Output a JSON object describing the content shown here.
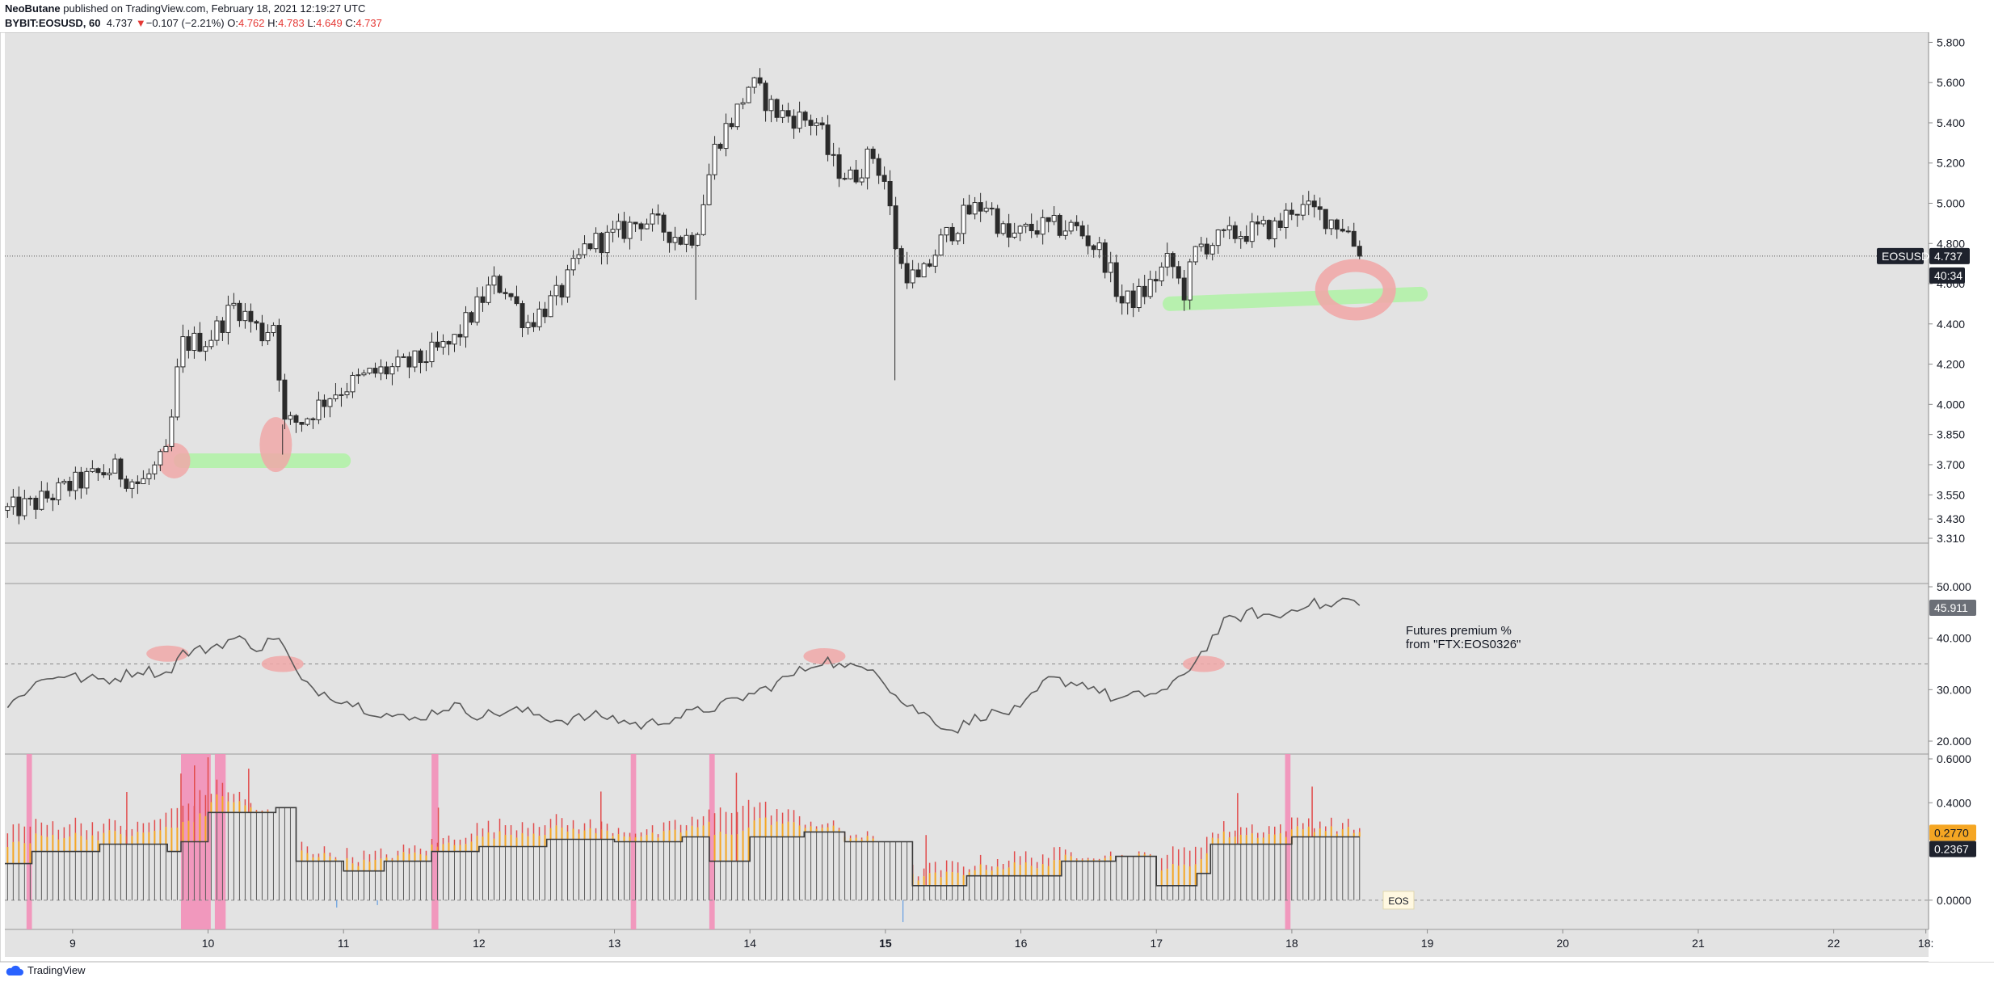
{
  "header": {
    "author": "NeoButane",
    "published": "published on TradingView.com, February 18, 2021 12:19:27 UTC",
    "symbol": "BYBIT:EOSUSD, 60",
    "last": "4.737",
    "change_arrow": "▼",
    "change": "−0.107 (−2.21%)",
    "o_label": "O:",
    "o": "4.762",
    "h_label": "H:",
    "h": "4.783",
    "l_label": "L:",
    "l": "4.649",
    "c_label": "C:",
    "c": "4.737"
  },
  "footer": {
    "brand": "TradingView",
    "icon": "cloud-icon"
  },
  "colors": {
    "background": "#e3e3e3",
    "candle": "#2b2b2b",
    "green_marker": "#b3f2a9",
    "red_marker": "#f0a8a8",
    "pink_band": "#f28fb8",
    "premium_line": "#5a5a5a",
    "hist_red": "#e24c4c",
    "hist_orange": "#f5a623"
  },
  "chart_data": [
    {
      "type": "candlestick",
      "name": "EOSUSD",
      "price_label": "EOSUSD",
      "last": 4.737,
      "countdown": "40:34",
      "ylim": [
        3.31,
        5.85
      ],
      "yticks": [
        "5.800",
        "5.600",
        "5.400",
        "5.200",
        "5.000",
        "4.800",
        "4.600",
        "4.400",
        "4.200",
        "4.000",
        "3.850",
        "3.700",
        "3.550",
        "3.430",
        "3.310"
      ],
      "ytick_values": [
        5.8,
        5.6,
        5.4,
        5.2,
        5.0,
        4.8,
        4.6,
        4.4,
        4.2,
        4.0,
        3.85,
        3.7,
        3.55,
        3.43,
        3.31
      ],
      "xticks": [
        "9",
        "10",
        "11",
        "12",
        "13",
        "14",
        "15",
        "16",
        "17",
        "18",
        "19",
        "20",
        "21",
        "22",
        "18:"
      ],
      "xtick_positions": [
        9,
        10,
        11,
        12,
        13,
        14,
        15,
        16,
        17,
        18,
        19,
        20,
        21,
        22,
        22.68
      ],
      "xlim": [
        8.5,
        22.7
      ],
      "path_anchors": [
        [
          8.5,
          3.47
        ],
        [
          8.7,
          3.5
        ],
        [
          9.0,
          3.6
        ],
        [
          9.3,
          3.68
        ],
        [
          9.5,
          3.6
        ],
        [
          9.7,
          3.75
        ],
        [
          9.8,
          4.3
        ],
        [
          10.0,
          4.32
        ],
        [
          10.2,
          4.5
        ],
        [
          10.4,
          4.35
        ],
        [
          10.5,
          4.42
        ],
        [
          10.55,
          3.9
        ],
        [
          10.7,
          3.92
        ],
        [
          10.9,
          4.05
        ],
        [
          11.2,
          4.15
        ],
        [
          11.5,
          4.2
        ],
        [
          11.8,
          4.3
        ],
        [
          12.0,
          4.5
        ],
        [
          12.1,
          4.6
        ],
        [
          12.2,
          4.58
        ],
        [
          12.35,
          4.4
        ],
        [
          12.6,
          4.55
        ],
        [
          12.8,
          4.8
        ],
        [
          12.95,
          4.82
        ],
        [
          13.2,
          4.92
        ],
        [
          13.4,
          4.86
        ],
        [
          13.5,
          4.82
        ],
        [
          13.6,
          4.85
        ],
        [
          13.75,
          5.3
        ],
        [
          13.9,
          5.45
        ],
        [
          14.0,
          5.6
        ],
        [
          14.2,
          5.45
        ],
        [
          14.5,
          5.4
        ],
        [
          14.6,
          5.2
        ],
        [
          14.75,
          5.12
        ],
        [
          14.9,
          5.25
        ],
        [
          15.0,
          5.1
        ],
        [
          15.1,
          4.7
        ],
        [
          15.25,
          4.6
        ],
        [
          15.4,
          4.8
        ],
        [
          15.6,
          4.95
        ],
        [
          15.75,
          5.0
        ],
        [
          15.9,
          4.82
        ],
        [
          16.1,
          4.88
        ],
        [
          16.4,
          4.88
        ],
        [
          16.6,
          4.75
        ],
        [
          16.75,
          4.5
        ],
        [
          16.9,
          4.55
        ],
        [
          17.1,
          4.72
        ],
        [
          17.2,
          4.55
        ],
        [
          17.3,
          4.78
        ],
        [
          17.6,
          4.85
        ],
        [
          17.9,
          4.88
        ],
        [
          18.0,
          4.98
        ],
        [
          18.2,
          4.95
        ],
        [
          18.4,
          4.88
        ],
        [
          18.5,
          4.74
        ]
      ],
      "annotations": {
        "green_zones": [
          {
            "x": [
              9.8,
              11.0
            ],
            "y": 3.72
          },
          {
            "x": [
              17.1,
              18.95
            ],
            "y": 4.5
          }
        ],
        "red_marks": [
          {
            "x": 9.75,
            "y": 3.72
          },
          {
            "x": 10.5,
            "y": 3.8
          },
          {
            "x": 18.47,
            "y": 4.57
          }
        ]
      }
    },
    {
      "type": "line",
      "name": "Futures premium %",
      "label_line1": "Futures premium %",
      "label_line2": "from \"FTX:EOS0326\"",
      "last": "45.911",
      "ylim": [
        20,
        50
      ],
      "yticks": [
        "50.000",
        "40.000",
        "30.000",
        "20.000"
      ],
      "ytick_values": [
        50,
        40,
        30,
        20
      ],
      "reference_level": 35,
      "anchors": [
        [
          8.5,
          26
        ],
        [
          8.7,
          31
        ],
        [
          8.9,
          33
        ],
        [
          9.1,
          32
        ],
        [
          9.3,
          32
        ],
        [
          9.5,
          34
        ],
        [
          9.7,
          33
        ],
        [
          9.8,
          37
        ],
        [
          10.0,
          38
        ],
        [
          10.2,
          40
        ],
        [
          10.4,
          38
        ],
        [
          10.5,
          41
        ],
        [
          10.6,
          36
        ],
        [
          10.7,
          31
        ],
        [
          10.9,
          29
        ],
        [
          11.2,
          26
        ],
        [
          11.5,
          24
        ],
        [
          11.8,
          27
        ],
        [
          12.0,
          25
        ],
        [
          12.3,
          26
        ],
        [
          12.6,
          24
        ],
        [
          12.9,
          25
        ],
        [
          13.2,
          23
        ],
        [
          13.5,
          25
        ],
        [
          13.8,
          27
        ],
        [
          14.1,
          30
        ],
        [
          14.4,
          34
        ],
        [
          14.55,
          36
        ],
        [
          14.7,
          34
        ],
        [
          14.9,
          35
        ],
        [
          15.1,
          28
        ],
        [
          15.3,
          25
        ],
        [
          15.5,
          22
        ],
        [
          15.7,
          25
        ],
        [
          16.0,
          26
        ],
        [
          16.2,
          32
        ],
        [
          16.5,
          31
        ],
        [
          16.7,
          28
        ],
        [
          16.9,
          29
        ],
        [
          17.1,
          30
        ],
        [
          17.3,
          36
        ],
        [
          17.5,
          43
        ],
        [
          17.7,
          45
        ],
        [
          17.9,
          44
        ],
        [
          18.1,
          47
        ],
        [
          18.3,
          46
        ],
        [
          18.4,
          48
        ],
        [
          18.5,
          46
        ]
      ],
      "markers": [
        {
          "x": 9.7,
          "y": 37
        },
        {
          "x": 10.55,
          "y": 35
        },
        {
          "x": 14.55,
          "y": 36.5
        },
        {
          "x": 17.35,
          "y": 35
        }
      ]
    },
    {
      "type": "bar",
      "name": "EOS",
      "label": "EOS",
      "ylim": [
        -0.12,
        0.6
      ],
      "yticks": [
        "0.6000",
        "0.4000",
        "0.2770",
        "0.2367",
        "0.0000"
      ],
      "ytick_values": [
        0.6,
        0.4,
        0.277,
        0.2367,
        0.0
      ],
      "last_orange": "0.2770",
      "last_gray": "0.2367",
      "bar_anchors": [
        [
          8.5,
          0.3
        ],
        [
          9.0,
          0.32
        ],
        [
          9.5,
          0.3
        ],
        [
          9.8,
          0.38
        ],
        [
          10.1,
          0.48
        ],
        [
          10.3,
          0.4
        ],
        [
          10.6,
          0.3
        ],
        [
          10.8,
          0.2
        ],
        [
          11.2,
          0.18
        ],
        [
          11.6,
          0.22
        ],
        [
          12.0,
          0.3
        ],
        [
          12.5,
          0.33
        ],
        [
          13.0,
          0.3
        ],
        [
          13.3,
          0.28
        ],
        [
          13.7,
          0.35
        ],
        [
          14.0,
          0.4
        ],
        [
          14.5,
          0.32
        ],
        [
          14.9,
          0.25
        ],
        [
          15.2,
          0.12
        ],
        [
          15.6,
          0.15
        ],
        [
          16.0,
          0.18
        ],
        [
          16.5,
          0.2
        ],
        [
          16.8,
          0.17
        ],
        [
          17.2,
          0.2
        ],
        [
          17.5,
          0.3
        ],
        [
          17.9,
          0.3
        ],
        [
          18.1,
          0.33
        ],
        [
          18.5,
          0.3
        ]
      ],
      "step_levels": [
        [
          8.5,
          0.15
        ],
        [
          8.7,
          0.2
        ],
        [
          9.2,
          0.23
        ],
        [
          9.7,
          0.2
        ],
        [
          9.8,
          0.24
        ],
        [
          10.0,
          0.36
        ],
        [
          10.5,
          0.38
        ],
        [
          10.65,
          0.16
        ],
        [
          11.0,
          0.12
        ],
        [
          11.3,
          0.16
        ],
        [
          11.65,
          0.2
        ],
        [
          12.0,
          0.22
        ],
        [
          12.5,
          0.25
        ],
        [
          13.0,
          0.24
        ],
        [
          13.5,
          0.26
        ],
        [
          13.7,
          0.16
        ],
        [
          14.0,
          0.26
        ],
        [
          14.4,
          0.28
        ],
        [
          14.7,
          0.24
        ],
        [
          15.2,
          0.06
        ],
        [
          15.6,
          0.1
        ],
        [
          16.0,
          0.1
        ],
        [
          16.3,
          0.16
        ],
        [
          16.7,
          0.18
        ],
        [
          17.0,
          0.06
        ],
        [
          17.3,
          0.11
        ],
        [
          17.4,
          0.23
        ],
        [
          18.0,
          0.26
        ],
        [
          18.5,
          0.26
        ]
      ],
      "spikes": [
        9.4,
        9.8,
        9.9,
        10.0,
        10.3,
        11.7,
        12.9,
        13.9,
        15.3,
        17.6,
        18.15
      ],
      "pink_bands": [
        [
          8.66,
          8.7
        ],
        [
          9.8,
          10.02
        ],
        [
          10.05,
          10.13
        ],
        [
          11.65,
          11.7
        ],
        [
          13.12,
          13.16
        ],
        [
          13.7,
          13.74
        ],
        [
          17.95,
          17.99
        ]
      ]
    }
  ]
}
